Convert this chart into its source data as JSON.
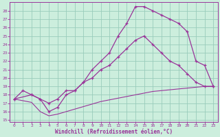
{
  "xlabel": "Windchill (Refroidissement éolien,°C)",
  "bg_color": "#cceedd",
  "line_color": "#993399",
  "grid_color": "#99ccbb",
  "xticks": [
    0,
    1,
    2,
    3,
    4,
    5,
    6,
    7,
    8,
    9,
    10,
    11,
    12,
    13,
    14,
    15,
    16,
    17,
    18,
    19,
    20,
    21,
    22,
    23
  ],
  "yticks": [
    15,
    16,
    17,
    18,
    19,
    20,
    21,
    22,
    23,
    24,
    25,
    26,
    27,
    28
  ],
  "xlim": [
    -0.5,
    23.5
  ],
  "ylim": [
    14.8,
    29.0
  ],
  "line1_x": [
    0,
    1,
    2,
    3,
    4,
    5,
    6,
    7,
    8,
    9,
    10,
    11,
    12,
    13,
    14,
    15,
    16,
    17,
    18,
    19,
    20,
    21,
    22,
    23
  ],
  "line1_y": [
    17.5,
    18.5,
    18.0,
    17.5,
    16.0,
    16.5,
    18.0,
    18.5,
    19.5,
    21.0,
    22.0,
    23.0,
    25.0,
    26.5,
    28.5,
    28.5,
    28.0,
    27.5,
    27.0,
    26.5,
    25.5,
    22.0,
    21.5,
    19.0
  ],
  "line2_x": [
    0,
    2,
    3,
    4,
    5,
    6,
    7,
    8,
    9,
    10,
    11,
    12,
    13,
    14,
    15,
    16,
    17,
    18,
    19,
    20,
    21,
    22,
    23
  ],
  "line2_y": [
    17.5,
    18.0,
    17.5,
    17.0,
    17.5,
    18.5,
    18.5,
    19.5,
    20.0,
    21.0,
    21.5,
    22.5,
    23.5,
    24.5,
    25.0,
    24.0,
    23.0,
    22.0,
    21.5,
    20.5,
    19.5,
    19.0,
    19.0
  ],
  "line3_x": [
    0,
    1,
    2,
    3,
    4,
    5,
    6,
    7,
    8,
    9,
    10,
    11,
    12,
    13,
    14,
    15,
    16,
    17,
    18,
    19,
    20,
    21,
    22,
    23
  ],
  "line3_y": [
    17.5,
    17.3,
    17.1,
    16.0,
    15.5,
    15.7,
    16.0,
    16.3,
    16.6,
    16.9,
    17.2,
    17.4,
    17.6,
    17.8,
    18.0,
    18.2,
    18.4,
    18.5,
    18.6,
    18.7,
    18.8,
    18.9,
    19.0,
    19.0
  ]
}
